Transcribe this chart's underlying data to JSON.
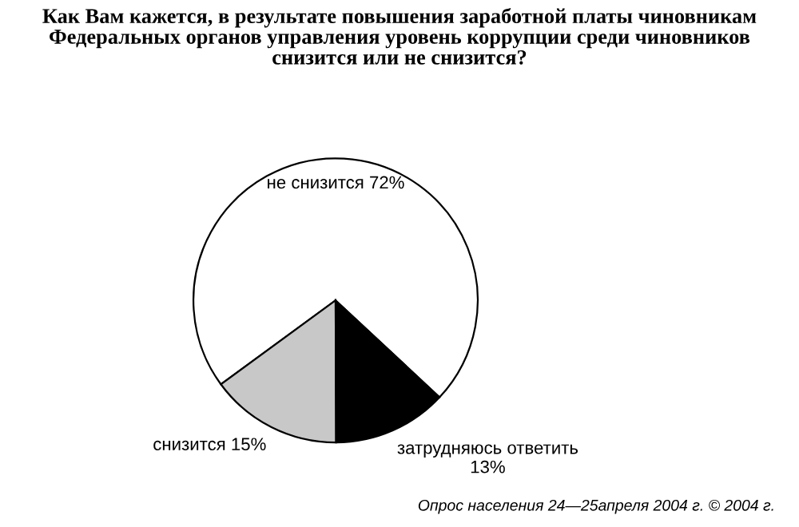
{
  "chart_data": {
    "type": "pie",
    "title": "Как Вам кажется, в результате повышения заработной платы чиновникам\nФедеральных органов управления уровень коррупции среди чиновников\nснизится или не снизится?",
    "categories": [
      "не снизится",
      "снизится",
      "затрудняюсь ответить"
    ],
    "values": [
      72,
      15,
      13
    ],
    "value_labels": [
      "72%",
      "15%",
      "13%"
    ],
    "colors": [
      "#ffffff",
      "#c8c8c8",
      "#000000"
    ],
    "annotations": [
      "Опрос населения 24—25апреля 2004 г. © 2004 г."
    ]
  }
}
